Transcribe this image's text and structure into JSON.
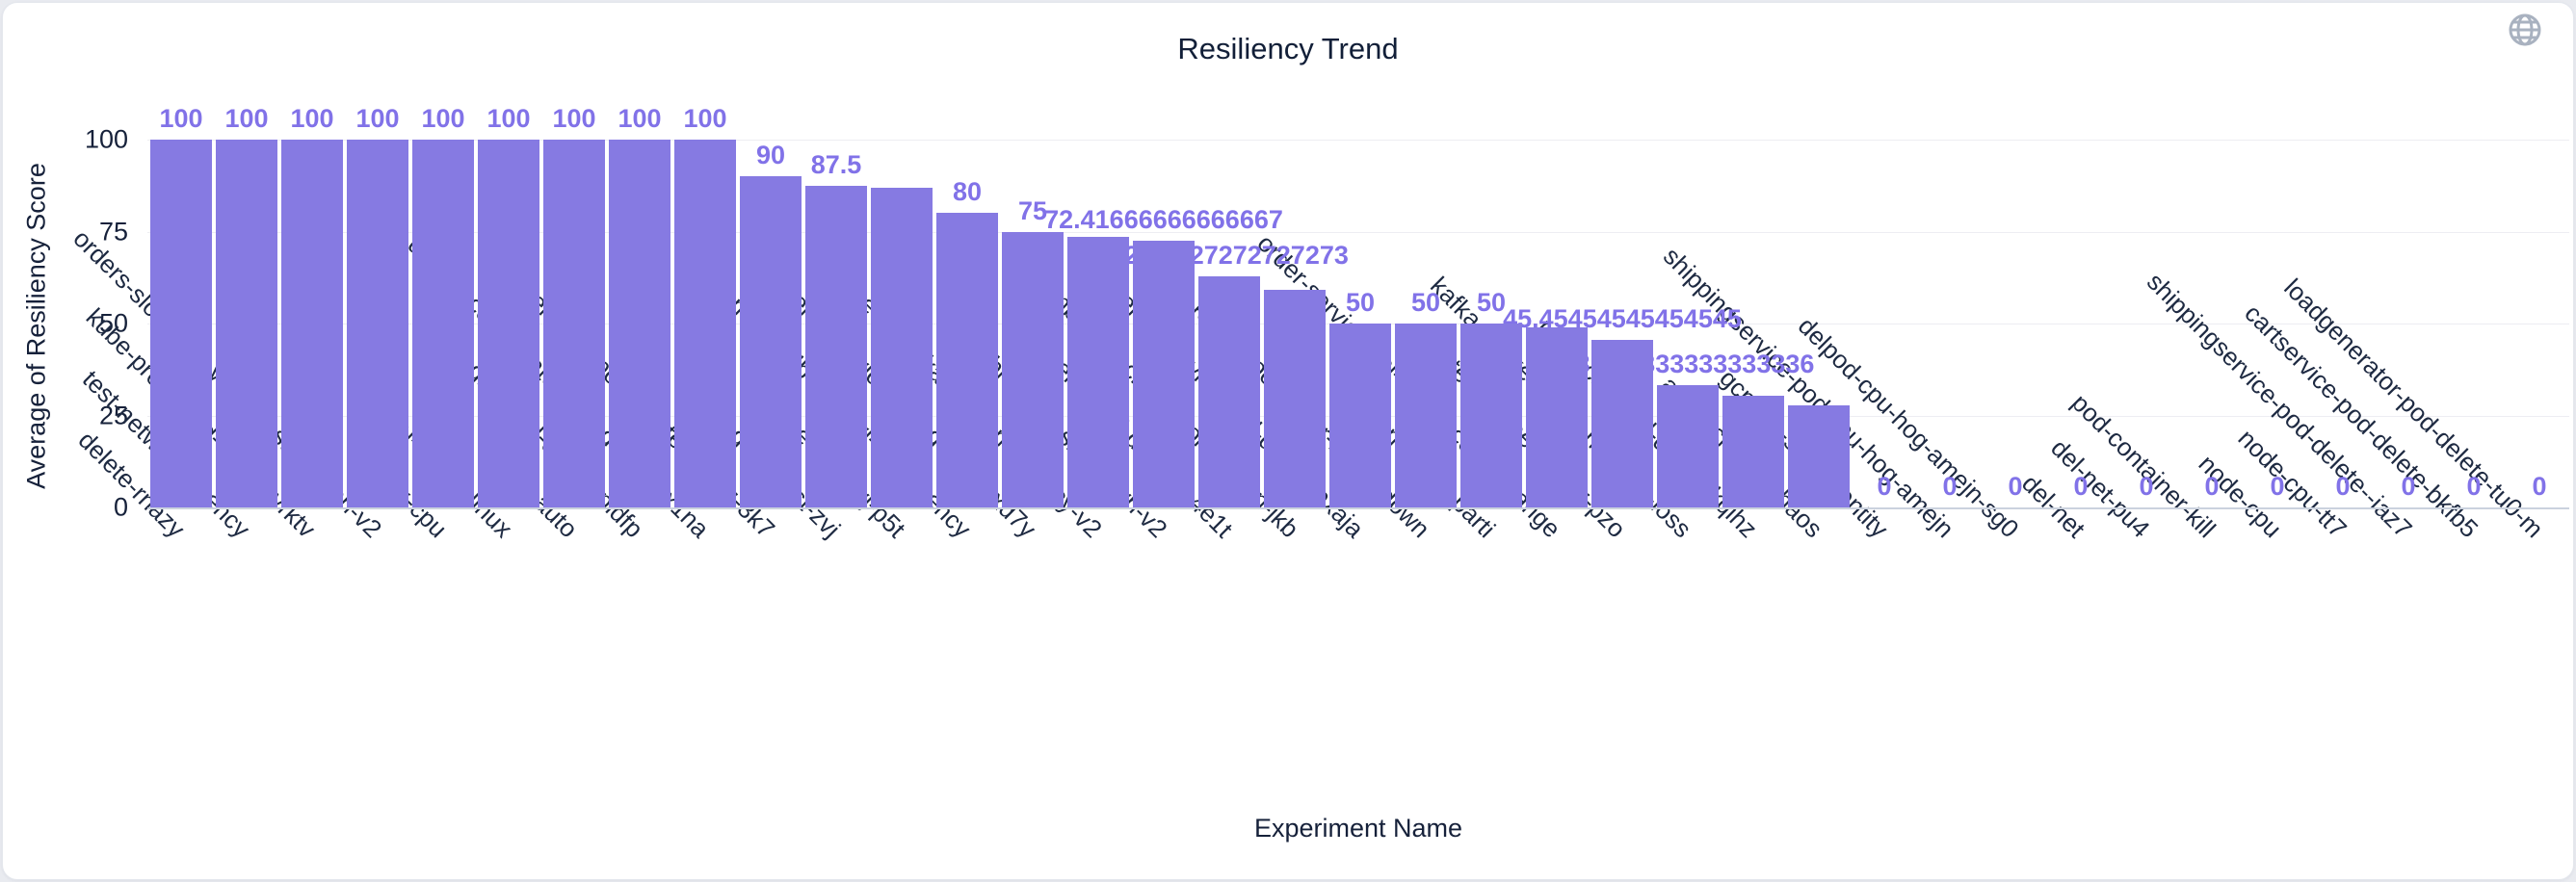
{
  "page": {
    "title": "Resiliency Trend"
  },
  "toolbar": {
    "globe_icon": "globe-icon"
  },
  "colors": {
    "bar": "#867AE2",
    "value_label": "#8172E8",
    "axis_text": "#16213a",
    "title_text": "#121f38",
    "gridline": "#ededf2",
    "baseline": "#cbd2de",
    "card_bg": "#ffffff",
    "page_bg": "#e9ebf0",
    "globe_icon": "#a9b2c0"
  },
  "chart_data": {
    "type": "bar",
    "title": "Resiliency Trend",
    "xlabel": "Experiment Name",
    "ylabel": "Average of Resiliency Score",
    "ylim": [
      0,
      100
    ],
    "yticks": [
      "0",
      "25",
      "50",
      "75",
      "100"
    ],
    "grid": true,
    "legend": false,
    "categories": [
      "delete-rnazy",
      "test-network-latency",
      "kube-proxy-pod-delete-vrktv",
      "orders-slowness-via-cpu-starvation-v2",
      "linux-cpu",
      "cpu-stress-linux",
      "pod-auto",
      "nginx-pod-delete-pldfp",
      "dynatrace-operator-pod-delete-zx1na",
      "smr-delegate-pod-delete-437az-3k7",
      "mongodb-test-zvj",
      "solace-test-zvj-p5t",
      "mongodb-test-zvj-4c1-latency",
      "currencyservice-pod-delete-axd7y",
      "invoice-to-kafka-network-latency-v2",
      "kafka-broker-1-shutdown-v2",
      "frontend-pod-delete-e4e1t",
      "lambda-block-tcp-connection-jkb",
      "emailservice-pod-delete-pxaja",
      "kafka-zookeeper-2-shutdown",
      "pod-network-parti",
      "order-service-api-status-code-change",
      "test-probe-logger-pzo",
      "kafka-zookeeper-2-network-loss",
      "redis-cart-pod-delete-kqihz",
      "az-blackhole-chaos",
      "gcp-vm-stop-identity",
      "shippingservice-pod-cpu-hog-amejn",
      "delpod-cpu-hog-amejn-sg0",
      "del-net",
      "del-net-pu4",
      "pod-container-kill",
      "node-cpu",
      "node-cpu-tt7",
      "shippingservice-pod-delete--iaz7",
      "cartservice-pod-delete-bkfb5",
      "loadgenerator-pod-delete-tu0-m"
    ],
    "values": [
      100,
      100,
      100,
      100,
      100,
      100,
      100,
      100,
      100,
      90,
      87.5,
      86.9,
      80,
      75,
      73.6,
      72.41666666666667,
      62.72727272727273,
      59.1,
      50,
      50,
      50,
      48.9,
      45.45454545454545,
      33.333333333333336,
      30.4,
      27.7,
      0,
      0,
      0,
      0,
      0,
      0,
      0,
      0,
      0,
      0,
      0
    ],
    "value_labels": [
      "100",
      "100",
      "100",
      "100",
      "100",
      "100",
      "100",
      "100",
      "100",
      "90",
      "87.5",
      "",
      "80",
      "75",
      "",
      "72.41666666666667",
      "62.72727272727273",
      "",
      "50",
      "50",
      "50",
      "",
      "45.45454545454545",
      "33.333333333333336",
      "",
      "",
      "0",
      "0",
      "0",
      "0",
      "0",
      "0",
      "0",
      "0",
      "0",
      "0",
      "0"
    ]
  }
}
